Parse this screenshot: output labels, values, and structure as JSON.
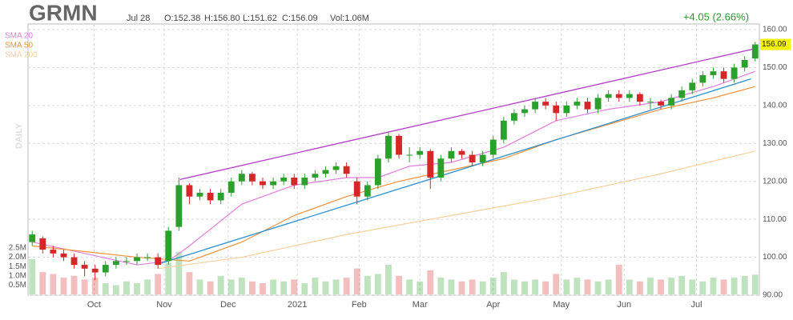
{
  "chart_data": {
    "type": "candlestick",
    "title": "GRMN",
    "info": [
      "Jul 28",
      "O:152.38",
      "H:156.80",
      "L:151.62",
      "C:156.09",
      "Vol:1.06M"
    ],
    "change_label": "+4.05 (2.66%)",
    "y_axis_label": "DAILY",
    "up_color": "#2ca02c",
    "down_color": "#d62728",
    "xlim": [
      -0.4,
      69.4
    ],
    "xticks": [
      {
        "value": 5.9,
        "label": "Oct"
      },
      {
        "value": 12.6,
        "label": "Nov"
      },
      {
        "value": 18.7,
        "label": "Dec"
      },
      {
        "value": 25.3,
        "label": "2021"
      },
      {
        "value": 31.2,
        "label": "Feb"
      },
      {
        "value": 37,
        "label": "Mar"
      },
      {
        "value": 44,
        "label": "Apr"
      },
      {
        "value": 50.5,
        "label": "May"
      },
      {
        "value": 56.5,
        "label": "Jun"
      },
      {
        "value": 63.4,
        "label": "Jul"
      }
    ],
    "ylim": [
      90,
      160
    ],
    "yticks": [
      {
        "value": 90,
        "label": "90.00"
      },
      {
        "value": 100,
        "label": "100.00"
      },
      {
        "value": 110,
        "label": "110.00"
      },
      {
        "value": 120,
        "label": "120.00"
      },
      {
        "value": 130,
        "label": "130.00"
      },
      {
        "value": 140,
        "label": "140.00"
      },
      {
        "value": 150,
        "label": "150.00"
      },
      {
        "value": 160,
        "label": "160.00"
      }
    ],
    "volume_ylim": [
      0,
      2.5
    ],
    "volume_ticks": [
      {
        "value": 0.5,
        "label": "0.5M"
      },
      {
        "value": 1.0,
        "label": "1.0M"
      },
      {
        "value": 1.5,
        "label": "1.5M"
      },
      {
        "value": 2.0,
        "label": "2.0M"
      },
      {
        "value": 2.5,
        "label": "2.5M"
      }
    ],
    "grid": true,
    "candles": [
      [
        104,
        107,
        103,
        106
      ],
      [
        105,
        105.5,
        101,
        102
      ],
      [
        102,
        103,
        100,
        101
      ],
      [
        101,
        102,
        99,
        100
      ],
      [
        100,
        101,
        97,
        98
      ],
      [
        98,
        99,
        95,
        97
      ],
      [
        97,
        98,
        94,
        96
      ],
      [
        96,
        99,
        95,
        98
      ],
      [
        98,
        100,
        97,
        99
      ],
      [
        99,
        100,
        98,
        99
      ],
      [
        99,
        101,
        98,
        100
      ],
      [
        100,
        101,
        99,
        100
      ],
      [
        100,
        101,
        97,
        98
      ],
      [
        99,
        108,
        98,
        107
      ],
      [
        108,
        121,
        107,
        119
      ],
      [
        119,
        119.5,
        114,
        116
      ],
      [
        116,
        118,
        115,
        117
      ],
      [
        117,
        118,
        114,
        115
      ],
      [
        115,
        118,
        114,
        117
      ],
      [
        117,
        121,
        116,
        120
      ],
      [
        120,
        123,
        119,
        122
      ],
      [
        122,
        122.5,
        119,
        120
      ],
      [
        120,
        121,
        118,
        119
      ],
      [
        119,
        121,
        118,
        120
      ],
      [
        120,
        122,
        119,
        121
      ],
      [
        121,
        122,
        118,
        119
      ],
      [
        119,
        122,
        118,
        121
      ],
      [
        121,
        123,
        120,
        122
      ],
      [
        122,
        124,
        121,
        123
      ],
      [
        123,
        125,
        122,
        124
      ],
      [
        124,
        125,
        121,
        122
      ],
      [
        120,
        121,
        114,
        116
      ],
      [
        116,
        120,
        115,
        119
      ],
      [
        119,
        127,
        118,
        126
      ],
      [
        126,
        133,
        125,
        132
      ],
      [
        132,
        132.5,
        126,
        127
      ],
      [
        127,
        129,
        125,
        127
      ],
      [
        127,
        129,
        126,
        128
      ],
      [
        128,
        128.5,
        118,
        121
      ],
      [
        121,
        127,
        120,
        126
      ],
      [
        126,
        129,
        125,
        128
      ],
      [
        128,
        128.5,
        126,
        127
      ],
      [
        127,
        128,
        124,
        125
      ],
      [
        125,
        128,
        124,
        127
      ],
      [
        127,
        132,
        126,
        131
      ],
      [
        131,
        137,
        130,
        136
      ],
      [
        136,
        139,
        135,
        138
      ],
      [
        138,
        140,
        137,
        139
      ],
      [
        139,
        142,
        138,
        141
      ],
      [
        141,
        142,
        139,
        140
      ],
      [
        140,
        141,
        136,
        138
      ],
      [
        138,
        141,
        137,
        140
      ],
      [
        140,
        142,
        139,
        141
      ],
      [
        141,
        142,
        138,
        139
      ],
      [
        139,
        143,
        138,
        142
      ],
      [
        142,
        144,
        141,
        143
      ],
      [
        143,
        144,
        141,
        142
      ],
      [
        142,
        144,
        141,
        143
      ],
      [
        143,
        143.5,
        140,
        141
      ],
      [
        141,
        142,
        139,
        141
      ],
      [
        141,
        141.5,
        139,
        140
      ],
      [
        140,
        143,
        139,
        142
      ],
      [
        142,
        145,
        141,
        144
      ],
      [
        144,
        147,
        143,
        146
      ],
      [
        146,
        149,
        145,
        148
      ],
      [
        148,
        150,
        147,
        149
      ],
      [
        149,
        150,
        146,
        147
      ],
      [
        147,
        151,
        146,
        150
      ],
      [
        150,
        153,
        149,
        152
      ],
      [
        152.38,
        156.8,
        151.62,
        156.09
      ]
    ],
    "volume": [
      1.9,
      1.2,
      1.1,
      0.9,
      1.0,
      0.8,
      0.9,
      0.6,
      0.5,
      0.7,
      0.6,
      0.8,
      1.1,
      1.7,
      2.3,
      1.2,
      0.8,
      0.7,
      1.0,
      0.8,
      0.9,
      0.7,
      0.6,
      0.8,
      0.7,
      0.8,
      0.6,
      0.9,
      0.7,
      0.8,
      0.9,
      1.4,
      1.0,
      1.1,
      1.6,
      1.0,
      0.8,
      0.7,
      1.3,
      0.9,
      0.8,
      0.7,
      0.8,
      0.7,
      0.9,
      1.2,
      0.8,
      0.7,
      0.8,
      0.7,
      1.1,
      0.8,
      0.9,
      0.8,
      0.7,
      0.8,
      1.6,
      0.8,
      0.7,
      0.9,
      0.8,
      0.9,
      1.0,
      0.8,
      0.7,
      0.9,
      0.8,
      0.9,
      1.0,
      1.06
    ],
    "series": [
      {
        "name": "SMA 20",
        "color": "#e27ee0",
        "x": [
          0,
          5,
          10,
          13,
          15,
          20,
          25,
          30,
          33,
          36,
          40,
          45,
          50,
          55,
          60,
          65,
          69
        ],
        "values": [
          104,
          101,
          98,
          99,
          103,
          114,
          119,
          121,
          121,
          124,
          125,
          129,
          136,
          139,
          141,
          145,
          149
        ]
      },
      {
        "name": "SMA 50",
        "color": "#f0923a",
        "x": [
          0,
          10,
          15,
          20,
          25,
          30,
          35,
          40,
          45,
          50,
          55,
          60,
          65,
          69
        ],
        "values": [
          103,
          100,
          99,
          104,
          111,
          116,
          120,
          123,
          126,
          131,
          135,
          139,
          142,
          145
        ]
      },
      {
        "name": "SMA 200",
        "color": "#f7cf9b",
        "x": [
          12,
          20,
          30,
          40,
          50,
          60,
          69
        ],
        "values": [
          97,
          100,
          106,
          111,
          116,
          122,
          128
        ]
      }
    ],
    "trendlines": [
      {
        "color": "#b43cc8",
        "x": [
          14.1,
          69
        ],
        "values": [
          120.5,
          155
        ]
      },
      {
        "color": "#2a8fd0",
        "x": [
          11.8,
          68.6
        ],
        "values": [
          98,
          147
        ]
      }
    ]
  }
}
